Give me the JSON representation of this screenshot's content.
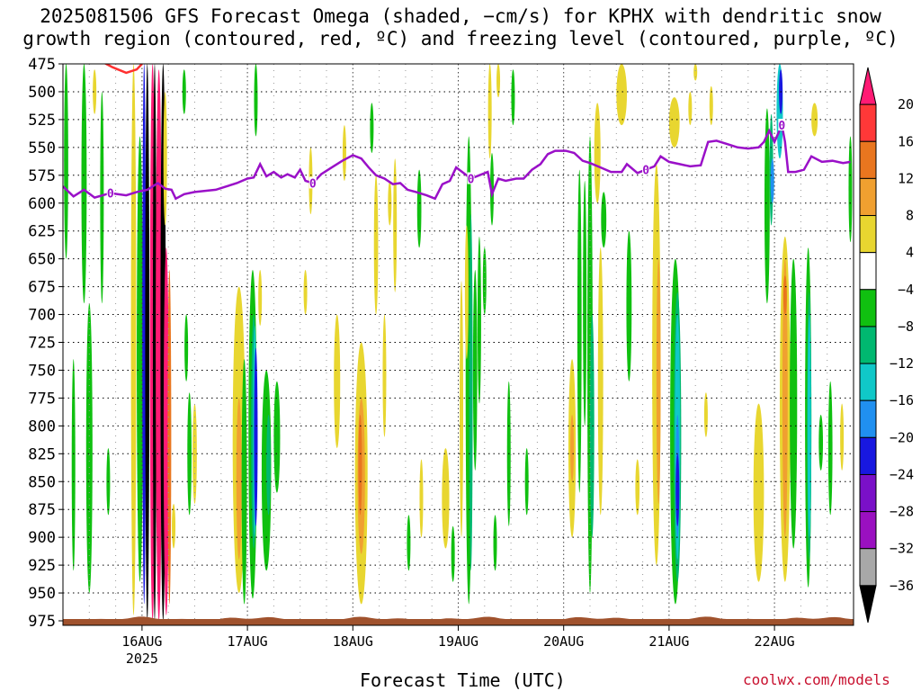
{
  "title": {
    "line1": "2025081506 GFS Forecast Omega (shaded, −cm/s) for KPHX with dendritic snow",
    "line2": "growth region (contoured, red, ºC) and freezing level (contoured, purple, ºC)"
  },
  "xlabel": "Forecast Time (UTC)",
  "credit": "coolwx.com/models",
  "chart_data": {
    "type": "heatmap",
    "x_axis": {
      "start_day": 15.25,
      "end_day": 22.75,
      "ticks": [
        {
          "day": 16,
          "label": "16AUG",
          "sub": "2025"
        },
        {
          "day": 17,
          "label": "17AUG",
          "sub": ""
        },
        {
          "day": 18,
          "label": "18AUG",
          "sub": ""
        },
        {
          "day": 19,
          "label": "19AUG",
          "sub": ""
        },
        {
          "day": 20,
          "label": "20AUG",
          "sub": ""
        },
        {
          "day": 21,
          "label": "21AUG",
          "sub": ""
        },
        {
          "day": 22,
          "label": "22AUG",
          "sub": ""
        }
      ]
    },
    "y_axis": {
      "range": [
        475,
        975
      ],
      "ticks": [
        475,
        500,
        525,
        550,
        575,
        600,
        625,
        650,
        675,
        700,
        725,
        750,
        775,
        800,
        825,
        850,
        875,
        900,
        925,
        950,
        975
      ]
    },
    "colorbar": {
      "labels": [
        "20",
        "16",
        "12",
        "8",
        "4",
        "−4",
        "−8",
        "−12",
        "−16",
        "−20",
        "−24",
        "−28",
        "−32",
        "−36"
      ],
      "colors": [
        "#ff1a74",
        "#ff3838",
        "#e9761f",
        "#f0a030",
        "#e8d630",
        "#ffffff",
        "#10c010",
        "#00b870",
        "#10c8c8",
        "#2090f0",
        "#1818e0",
        "#7a10c8",
        "#9a10c0",
        "#a8a8a8",
        "#000000"
      ]
    },
    "freezing_level": {
      "label": "0",
      "points": [
        [
          15.25,
          585
        ],
        [
          15.35,
          594
        ],
        [
          15.45,
          588
        ],
        [
          15.55,
          595
        ],
        [
          15.7,
          591
        ],
        [
          15.85,
          593
        ],
        [
          15.95,
          590
        ],
        [
          16.05,
          588
        ],
        [
          16.15,
          582
        ],
        [
          16.22,
          587
        ],
        [
          16.28,
          588
        ],
        [
          16.32,
          596
        ],
        [
          16.4,
          592
        ],
        [
          16.5,
          590
        ],
        [
          16.6,
          589
        ],
        [
          16.7,
          588
        ],
        [
          16.8,
          585
        ],
        [
          16.9,
          582
        ],
        [
          17.0,
          578
        ],
        [
          17.06,
          577
        ],
        [
          17.12,
          565
        ],
        [
          17.18,
          576
        ],
        [
          17.25,
          572
        ],
        [
          17.32,
          577
        ],
        [
          17.38,
          574
        ],
        [
          17.45,
          577
        ],
        [
          17.5,
          570
        ],
        [
          17.55,
          580
        ],
        [
          17.62,
          582
        ],
        [
          17.7,
          574
        ],
        [
          17.8,
          568
        ],
        [
          17.9,
          562
        ],
        [
          18.0,
          557
        ],
        [
          18.08,
          560
        ],
        [
          18.15,
          568
        ],
        [
          18.22,
          575
        ],
        [
          18.3,
          578
        ],
        [
          18.38,
          583
        ],
        [
          18.45,
          582
        ],
        [
          18.52,
          588
        ],
        [
          18.6,
          590
        ],
        [
          18.7,
          593
        ],
        [
          18.78,
          596
        ],
        [
          18.85,
          583
        ],
        [
          18.92,
          580
        ],
        [
          18.98,
          568
        ],
        [
          19.05,
          573
        ],
        [
          19.12,
          578
        ],
        [
          19.2,
          575
        ],
        [
          19.28,
          572
        ],
        [
          19.32,
          592
        ],
        [
          19.38,
          578
        ],
        [
          19.45,
          580
        ],
        [
          19.55,
          578
        ],
        [
          19.62,
          578
        ],
        [
          19.7,
          570
        ],
        [
          19.78,
          565
        ],
        [
          19.85,
          556
        ],
        [
          19.92,
          553
        ],
        [
          20.02,
          553
        ],
        [
          20.1,
          555
        ],
        [
          20.18,
          562
        ],
        [
          20.25,
          564
        ],
        [
          20.35,
          568
        ],
        [
          20.45,
          572
        ],
        [
          20.55,
          572
        ],
        [
          20.6,
          565
        ],
        [
          20.7,
          573
        ],
        [
          20.78,
          570
        ],
        [
          20.86,
          567
        ],
        [
          20.92,
          558
        ],
        [
          21.0,
          563
        ],
        [
          21.1,
          565
        ],
        [
          21.2,
          567
        ],
        [
          21.3,
          566
        ],
        [
          21.37,
          545
        ],
        [
          21.45,
          544
        ],
        [
          21.55,
          547
        ],
        [
          21.65,
          550
        ],
        [
          21.75,
          551
        ],
        [
          21.85,
          550
        ],
        [
          21.9,
          545
        ],
        [
          21.95,
          535
        ],
        [
          22.0,
          545
        ],
        [
          22.07,
          530
        ],
        [
          22.1,
          545
        ],
        [
          22.13,
          572
        ],
        [
          22.2,
          572
        ],
        [
          22.28,
          570
        ],
        [
          22.35,
          558
        ],
        [
          22.45,
          563
        ],
        [
          22.55,
          562
        ],
        [
          22.65,
          564
        ],
        [
          22.72,
          563
        ]
      ]
    },
    "dendritic_contour": {
      "points": [
        [
          15.6,
          472
        ],
        [
          15.72,
          478
        ],
        [
          15.85,
          483
        ],
        [
          15.95,
          480
        ],
        [
          16.0,
          475
        ]
      ]
    },
    "omega_regions": [
      {
        "x": 15.45,
        "p1": 475,
        "p2": 690,
        "w": 0.05,
        "c": "#10c010"
      },
      {
        "x": 15.28,
        "p1": 475,
        "p2": 650,
        "w": 0.04,
        "c": "#10c010"
      },
      {
        "x": 15.5,
        "p1": 690,
        "p2": 950,
        "w": 0.06,
        "c": "#10c010"
      },
      {
        "x": 15.62,
        "p1": 500,
        "p2": 690,
        "w": 0.03,
        "c": "#10c010"
      },
      {
        "x": 15.35,
        "p1": 740,
        "p2": 930,
        "w": 0.03,
        "c": "#10c010"
      },
      {
        "x": 15.68,
        "p1": 820,
        "p2": 880,
        "w": 0.025,
        "c": "#10c010"
      },
      {
        "x": 15.55,
        "p1": 480,
        "p2": 520,
        "w": 0.03,
        "c": "#e8d630"
      },
      {
        "x": 15.92,
        "p1": 475,
        "p2": 970,
        "w": 0.05,
        "c": "#e8d630"
      },
      {
        "x": 15.98,
        "p1": 540,
        "p2": 940,
        "w": 0.06,
        "c": "#10c010"
      },
      {
        "x": 16.02,
        "p1": 475,
        "p2": 960,
        "w": 0.03,
        "c": "#1818e0"
      },
      {
        "x": 16.05,
        "p1": 475,
        "p2": 975,
        "w": 0.04,
        "c": "#000000"
      },
      {
        "x": 16.1,
        "p1": 475,
        "p2": 975,
        "w": 0.05,
        "c": "#ff1a74"
      },
      {
        "x": 16.12,
        "p1": 475,
        "p2": 975,
        "w": 0.03,
        "c": "#000000"
      },
      {
        "x": 16.16,
        "p1": 480,
        "p2": 975,
        "w": 0.06,
        "c": "#ff1a74"
      },
      {
        "x": 16.2,
        "p1": 475,
        "p2": 975,
        "w": 0.05,
        "c": "#000000"
      },
      {
        "x": 16.23,
        "p1": 640,
        "p2": 970,
        "w": 0.05,
        "c": "#ff1a74"
      },
      {
        "x": 16.26,
        "p1": 660,
        "p2": 960,
        "w": 0.03,
        "c": "#e9761f"
      },
      {
        "x": 16.22,
        "p1": 500,
        "p2": 620,
        "w": 0.03,
        "c": "#e8d630"
      },
      {
        "x": 16.4,
        "p1": 480,
        "p2": 520,
        "w": 0.025,
        "c": "#10c010"
      },
      {
        "x": 16.45,
        "p1": 770,
        "p2": 880,
        "w": 0.04,
        "c": "#10c010"
      },
      {
        "x": 16.42,
        "p1": 700,
        "p2": 760,
        "w": 0.03,
        "c": "#10c010"
      },
      {
        "x": 16.5,
        "p1": 780,
        "p2": 870,
        "w": 0.04,
        "c": "#e8d630"
      },
      {
        "x": 16.3,
        "p1": 870,
        "p2": 910,
        "w": 0.02,
        "c": "#e8d630"
      },
      {
        "x": 16.92,
        "p1": 675,
        "p2": 950,
        "w": 0.12,
        "c": "#e8d630"
      },
      {
        "x": 16.92,
        "p1": 775,
        "p2": 920,
        "w": 0.05,
        "c": "#f0a030"
      },
      {
        "x": 16.97,
        "p1": 740,
        "p2": 960,
        "w": 0.05,
        "c": "#10c010"
      },
      {
        "x": 17.05,
        "p1": 660,
        "p2": 955,
        "w": 0.08,
        "c": "#10c010"
      },
      {
        "x": 17.06,
        "p1": 700,
        "p2": 910,
        "w": 0.05,
        "c": "#00b870"
      },
      {
        "x": 17.07,
        "p1": 710,
        "p2": 900,
        "w": 0.025,
        "c": "#10c8c8"
      },
      {
        "x": 17.08,
        "p1": 730,
        "p2": 890,
        "w": 0.015,
        "c": "#1818e0"
      },
      {
        "x": 17.12,
        "p1": 660,
        "p2": 710,
        "w": 0.03,
        "c": "#e8d630"
      },
      {
        "x": 17.18,
        "p1": 750,
        "p2": 930,
        "w": 0.09,
        "c": "#10c010"
      },
      {
        "x": 17.2,
        "p1": 790,
        "p2": 880,
        "w": 0.04,
        "c": "#00b870"
      },
      {
        "x": 17.28,
        "p1": 760,
        "p2": 860,
        "w": 0.06,
        "c": "#10c010"
      },
      {
        "x": 17.08,
        "p1": 475,
        "p2": 540,
        "w": 0.02,
        "c": "#10c010"
      },
      {
        "x": 17.55,
        "p1": 660,
        "p2": 700,
        "w": 0.02,
        "c": "#e8d630"
      },
      {
        "x": 17.6,
        "p1": 550,
        "p2": 610,
        "w": 0.02,
        "c": "#e8d630"
      },
      {
        "x": 17.85,
        "p1": 700,
        "p2": 820,
        "w": 0.06,
        "c": "#e8d630"
      },
      {
        "x": 17.92,
        "p1": 530,
        "p2": 580,
        "w": 0.02,
        "c": "#e8d630"
      },
      {
        "x": 18.08,
        "p1": 725,
        "p2": 960,
        "w": 0.12,
        "c": "#e8d630"
      },
      {
        "x": 18.08,
        "p1": 775,
        "p2": 915,
        "w": 0.07,
        "c": "#f0a030"
      },
      {
        "x": 18.07,
        "p1": 790,
        "p2": 880,
        "w": 0.03,
        "c": "#e9761f"
      },
      {
        "x": 18.22,
        "p1": 575,
        "p2": 700,
        "w": 0.04,
        "c": "#e8d630"
      },
      {
        "x": 18.3,
        "p1": 700,
        "p2": 810,
        "w": 0.025,
        "c": "#e8d630"
      },
      {
        "x": 18.35,
        "p1": 580,
        "p2": 620,
        "w": 0.02,
        "c": "#e8d630"
      },
      {
        "x": 18.4,
        "p1": 560,
        "p2": 680,
        "w": 0.02,
        "c": "#e8d630"
      },
      {
        "x": 18.18,
        "p1": 510,
        "p2": 555,
        "w": 0.02,
        "c": "#10c010"
      },
      {
        "x": 18.53,
        "p1": 880,
        "p2": 930,
        "w": 0.025,
        "c": "#10c010"
      },
      {
        "x": 18.63,
        "p1": 570,
        "p2": 640,
        "w": 0.04,
        "c": "#10c010"
      },
      {
        "x": 18.65,
        "p1": 830,
        "p2": 900,
        "w": 0.03,
        "c": "#e8d630"
      },
      {
        "x": 18.88,
        "p1": 820,
        "p2": 910,
        "w": 0.07,
        "c": "#e8d630"
      },
      {
        "x": 18.95,
        "p1": 890,
        "p2": 940,
        "w": 0.02,
        "c": "#10c010"
      },
      {
        "x": 19.03,
        "p1": 670,
        "p2": 900,
        "w": 0.03,
        "c": "#e8d630"
      },
      {
        "x": 19.1,
        "p1": 540,
        "p2": 960,
        "w": 0.06,
        "c": "#10c010"
      },
      {
        "x": 19.12,
        "p1": 610,
        "p2": 930,
        "w": 0.03,
        "c": "#00b870"
      },
      {
        "x": 19.16,
        "p1": 660,
        "p2": 840,
        "w": 0.04,
        "c": "#10c010"
      },
      {
        "x": 19.2,
        "p1": 630,
        "p2": 780,
        "w": 0.025,
        "c": "#10c010"
      },
      {
        "x": 19.08,
        "p1": 620,
        "p2": 740,
        "w": 0.02,
        "c": "#e8d630"
      },
      {
        "x": 19.25,
        "p1": 640,
        "p2": 700,
        "w": 0.02,
        "c": "#10c010"
      },
      {
        "x": 19.3,
        "p1": 475,
        "p2": 560,
        "w": 0.03,
        "c": "#e8d630"
      },
      {
        "x": 19.32,
        "p1": 555,
        "p2": 620,
        "w": 0.03,
        "c": "#10c010"
      },
      {
        "x": 19.35,
        "p1": 880,
        "p2": 930,
        "w": 0.03,
        "c": "#10c010"
      },
      {
        "x": 19.38,
        "p1": 475,
        "p2": 505,
        "w": 0.03,
        "c": "#e8d630"
      },
      {
        "x": 19.48,
        "p1": 760,
        "p2": 890,
        "w": 0.03,
        "c": "#10c010"
      },
      {
        "x": 19.52,
        "p1": 480,
        "p2": 530,
        "w": 0.02,
        "c": "#10c010"
      },
      {
        "x": 19.65,
        "p1": 820,
        "p2": 880,
        "w": 0.02,
        "c": "#10c010"
      },
      {
        "x": 20.08,
        "p1": 740,
        "p2": 900,
        "w": 0.07,
        "c": "#e8d630"
      },
      {
        "x": 20.08,
        "p1": 790,
        "p2": 850,
        "w": 0.03,
        "c": "#f0a030"
      },
      {
        "x": 20.15,
        "p1": 570,
        "p2": 860,
        "w": 0.04,
        "c": "#10c010"
      },
      {
        "x": 20.2,
        "p1": 580,
        "p2": 800,
        "w": 0.03,
        "c": "#10c010"
      },
      {
        "x": 20.25,
        "p1": 540,
        "p2": 950,
        "w": 0.05,
        "c": "#10c010"
      },
      {
        "x": 20.27,
        "p1": 700,
        "p2": 900,
        "w": 0.04,
        "c": "#00b870"
      },
      {
        "x": 20.32,
        "p1": 510,
        "p2": 600,
        "w": 0.06,
        "c": "#e8d630"
      },
      {
        "x": 20.35,
        "p1": 640,
        "p2": 880,
        "w": 0.05,
        "c": "#e8d630"
      },
      {
        "x": 20.38,
        "p1": 590,
        "p2": 640,
        "w": 0.05,
        "c": "#10c010"
      },
      {
        "x": 20.55,
        "p1": 475,
        "p2": 530,
        "w": 0.1,
        "c": "#e8d630"
      },
      {
        "x": 20.62,
        "p1": 625,
        "p2": 760,
        "w": 0.05,
        "c": "#10c010"
      },
      {
        "x": 20.7,
        "p1": 830,
        "p2": 880,
        "w": 0.04,
        "c": "#e8d630"
      },
      {
        "x": 20.88,
        "p1": 565,
        "p2": 925,
        "w": 0.08,
        "c": "#e8d630"
      },
      {
        "x": 20.9,
        "p1": 650,
        "p2": 870,
        "w": 0.04,
        "c": "#f0a030"
      },
      {
        "x": 21.06,
        "p1": 650,
        "p2": 960,
        "w": 0.1,
        "c": "#10c010"
      },
      {
        "x": 21.08,
        "p1": 680,
        "p2": 940,
        "w": 0.07,
        "c": "#00b870"
      },
      {
        "x": 21.08,
        "p1": 700,
        "p2": 920,
        "w": 0.05,
        "c": "#10c8c8"
      },
      {
        "x": 21.08,
        "p1": 790,
        "p2": 900,
        "w": 0.03,
        "c": "#2090f0"
      },
      {
        "x": 21.08,
        "p1": 825,
        "p2": 890,
        "w": 0.02,
        "c": "#1818e0"
      },
      {
        "x": 21.25,
        "p1": 475,
        "p2": 490,
        "w": 0.03,
        "c": "#e8d630"
      },
      {
        "x": 21.2,
        "p1": 500,
        "p2": 530,
        "w": 0.03,
        "c": "#e8d630"
      },
      {
        "x": 21.35,
        "p1": 770,
        "p2": 810,
        "w": 0.02,
        "c": "#e8d630"
      },
      {
        "x": 21.4,
        "p1": 495,
        "p2": 530,
        "w": 0.03,
        "c": "#e8d630"
      },
      {
        "x": 21.05,
        "p1": 505,
        "p2": 550,
        "w": 0.1,
        "c": "#e8d630"
      },
      {
        "x": 21.85,
        "p1": 780,
        "p2": 940,
        "w": 0.1,
        "c": "#e8d630"
      },
      {
        "x": 21.93,
        "p1": 515,
        "p2": 690,
        "w": 0.05,
        "c": "#10c010"
      },
      {
        "x": 21.97,
        "p1": 520,
        "p2": 620,
        "w": 0.03,
        "c": "#00b870"
      },
      {
        "x": 21.98,
        "p1": 560,
        "p2": 600,
        "w": 0.015,
        "c": "#2090f0"
      },
      {
        "x": 22.05,
        "p1": 475,
        "p2": 560,
        "w": 0.06,
        "c": "#10c8c8"
      },
      {
        "x": 22.06,
        "p1": 480,
        "p2": 520,
        "w": 0.03,
        "c": "#1818e0"
      },
      {
        "x": 22.1,
        "p1": 630,
        "p2": 940,
        "w": 0.1,
        "c": "#e8d630"
      },
      {
        "x": 22.1,
        "p1": 650,
        "p2": 900,
        "w": 0.05,
        "c": "#f0a030"
      },
      {
        "x": 22.1,
        "p1": 665,
        "p2": 700,
        "w": 0.025,
        "c": "#e9761f"
      },
      {
        "x": 22.18,
        "p1": 650,
        "p2": 910,
        "w": 0.07,
        "c": "#10c010"
      },
      {
        "x": 22.32,
        "p1": 640,
        "p2": 945,
        "w": 0.06,
        "c": "#10c010"
      },
      {
        "x": 22.33,
        "p1": 680,
        "p2": 920,
        "w": 0.04,
        "c": "#00b870"
      },
      {
        "x": 22.33,
        "p1": 700,
        "p2": 900,
        "w": 0.02,
        "c": "#10c8c8"
      },
      {
        "x": 22.38,
        "p1": 510,
        "p2": 540,
        "w": 0.06,
        "c": "#e8d630"
      },
      {
        "x": 22.44,
        "p1": 790,
        "p2": 840,
        "w": 0.04,
        "c": "#10c010"
      },
      {
        "x": 22.53,
        "p1": 760,
        "p2": 880,
        "w": 0.04,
        "c": "#10c010"
      },
      {
        "x": 22.64,
        "p1": 780,
        "p2": 840,
        "w": 0.03,
        "c": "#e8d630"
      },
      {
        "x": 22.72,
        "p1": 540,
        "p2": 635,
        "w": 0.03,
        "c": "#10c010"
      }
    ]
  }
}
